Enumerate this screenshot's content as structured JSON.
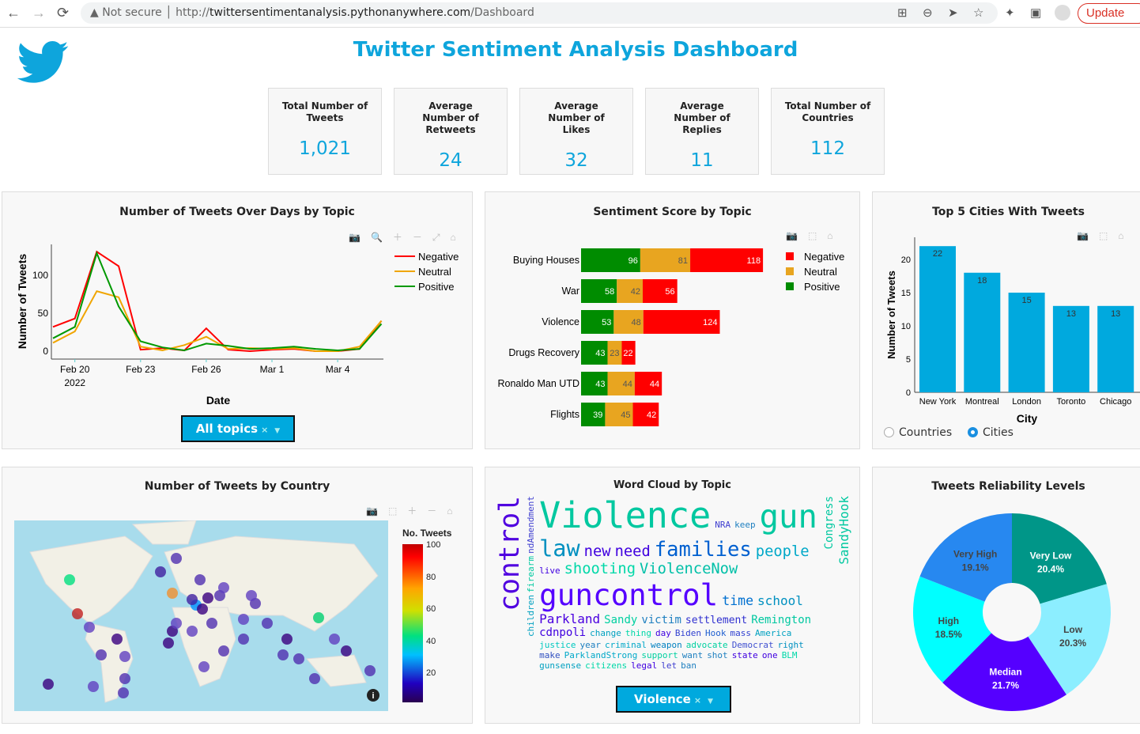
{
  "browser": {
    "back": "←",
    "forward": "→",
    "reload": "⟳",
    "warning": "Not secure",
    "url_host": "twittersentimentanalysis.pythonanywhere.com",
    "url_scheme": "http://",
    "url_path": "/Dashboard",
    "update": "Update"
  },
  "header": {
    "title": "Twitter Sentiment Analysis Dashboard",
    "logo": "twitter-bird-icon",
    "accent": "#0ea5dc"
  },
  "cards": [
    {
      "label": "Total Number of Tweets",
      "value": "1,021"
    },
    {
      "label": "Average Number of Retweets",
      "value": "24"
    },
    {
      "label": "Average Number of Likes",
      "value": "32"
    },
    {
      "label": "Average Number of Replies",
      "value": "11"
    },
    {
      "label": "Total Number of Countries",
      "value": "112"
    }
  ],
  "chart_data": [
    {
      "type": "line",
      "title": "Number of Tweets Over Days by Topic",
      "xlabel": "Date",
      "ylabel": "Number of Tweets",
      "x": [
        "2022-02-19",
        "2022-02-20",
        "2022-02-21",
        "2022-02-22",
        "2022-02-23",
        "2022-02-24",
        "2022-02-25",
        "2022-02-26",
        "2022-02-27",
        "2022-02-28",
        "2022-03-01",
        "2022-03-02",
        "2022-03-03",
        "2022-03-04",
        "2022-03-05",
        "2022-03-06"
      ],
      "xticks": [
        "Feb 20",
        "Feb 23",
        "Feb 26",
        "Mar 1",
        "Mar 4"
      ],
      "xtick_year": "2022",
      "yticks": [
        "0",
        "50",
        "100"
      ],
      "ylim": [
        0,
        140
      ],
      "legend": "top-right",
      "series": [
        {
          "name": "Negative",
          "color": "#ff0000",
          "values": [
            32,
            43,
            131,
            112,
            2,
            4,
            1,
            30,
            2,
            0,
            2,
            3,
            0,
            0,
            3,
            40
          ]
        },
        {
          "name": "Neutral",
          "color": "#f0a500",
          "values": [
            11,
            26,
            79,
            71,
            6,
            1,
            8,
            19,
            3,
            4,
            3,
            4,
            0,
            0,
            6,
            40
          ]
        },
        {
          "name": "Positive",
          "color": "#009900",
          "values": [
            17,
            32,
            129,
            59,
            13,
            5,
            1,
            10,
            7,
            3,
            4,
            6,
            3,
            1,
            3,
            36
          ]
        }
      ],
      "dropdown": "All topics"
    },
    {
      "type": "bar",
      "orientation": "horizontal",
      "stacked": true,
      "title": "Sentiment Score by Topic",
      "legend": "top-right",
      "categories": [
        "Buying Houses",
        "War",
        "Violence",
        "Drugs Recovery",
        "Ronaldo Man UTD",
        "Flights"
      ],
      "series": [
        {
          "name": "Positive",
          "color": "#008c00",
          "values": [
            96,
            58,
            53,
            43,
            43,
            39
          ]
        },
        {
          "name": "Neutral",
          "color": "#e8a520",
          "values": [
            81,
            42,
            48,
            23,
            44,
            45
          ]
        },
        {
          "name": "Negative",
          "color": "#ff0000",
          "values": [
            118,
            56,
            124,
            22,
            44,
            42
          ]
        }
      ],
      "legend_order": [
        "Negative",
        "Neutral",
        "Positive"
      ]
    },
    {
      "type": "bar",
      "title": "Top 5 Cities With Tweets",
      "xlabel": "City",
      "ylabel": "Number of Tweets",
      "categories": [
        "New York",
        "Montreal",
        "London",
        "Toronto",
        "Chicago"
      ],
      "values": [
        22,
        18,
        15,
        13,
        13
      ],
      "yticks": [
        "0",
        "5",
        "10",
        "15",
        "20"
      ],
      "ylim": [
        0,
        23
      ],
      "color": "#00a9de",
      "radio": {
        "options": [
          "Countries",
          "Cities"
        ],
        "selected": "Cities"
      }
    },
    {
      "type": "scatter",
      "subtype": "geo-map",
      "title": "Number of Tweets by Country",
      "colorbar_title": "No. Tweets",
      "colorbar_ticks": [
        "100",
        "80",
        "60",
        "40",
        "20"
      ],
      "colorscale": [
        "#ff0000",
        "#ffa500",
        "#c8e000",
        "#00e080",
        "#00c0ff",
        "#2000c0",
        "#2a0050"
      ]
    },
    {
      "type": "other",
      "subtype": "word-cloud",
      "title": "Word Cloud by Topic",
      "dropdown": "Violence",
      "words": [
        {
          "t": "Violence",
          "c": "#00c8a0"
        },
        {
          "t": "control",
          "c": "#5000e0"
        },
        {
          "t": "gun",
          "c": "#00c8a0"
        },
        {
          "t": "law",
          "c": "#0090c0"
        },
        {
          "t": "guncontrol",
          "c": "#5500ff"
        },
        {
          "t": "families",
          "c": "#0060d0"
        },
        {
          "t": "people",
          "c": "#00a8c8"
        },
        {
          "t": "need",
          "c": "#4000e0"
        },
        {
          "t": "Parkland",
          "c": "#4a00e0"
        },
        {
          "t": "shooting",
          "c": "#00d8a8"
        },
        {
          "t": "ViolenceNow",
          "c": "#00c0a8"
        },
        {
          "t": "new",
          "c": "#4000e0"
        },
        {
          "t": "time",
          "c": "#0070d0"
        },
        {
          "t": "school",
          "c": "#0090c0"
        },
        {
          "t": "settlement",
          "c": "#3030d0"
        },
        {
          "t": "NRA",
          "c": "#4040d0"
        },
        {
          "t": "thing",
          "c": "#00d8a8"
        },
        {
          "t": "change",
          "c": "#00a0c0"
        },
        {
          "t": "day",
          "c": "#4000e0"
        },
        {
          "t": "Biden",
          "c": "#3040d0"
        },
        {
          "t": "Hook",
          "c": "#2060d0"
        },
        {
          "t": "victim",
          "c": "#2080c0"
        },
        {
          "t": "Sandy",
          "c": "#00d0a0"
        },
        {
          "t": "mass",
          "c": "#3040d0"
        },
        {
          "t": "America",
          "c": "#00a0c0"
        },
        {
          "t": "justice",
          "c": "#00c8c0"
        },
        {
          "t": "year",
          "c": "#2080c0"
        },
        {
          "t": "Remington",
          "c": "#00c8a0"
        },
        {
          "t": "cdnpoli",
          "c": "#4000e0"
        },
        {
          "t": "criminal",
          "c": "#00a8c8"
        },
        {
          "t": "weapon",
          "c": "#0080c0"
        },
        {
          "t": "advocate",
          "c": "#00d0a0"
        },
        {
          "t": "Democrat",
          "c": "#4050d0"
        },
        {
          "t": "right",
          "c": "#0090c0"
        },
        {
          "t": "make",
          "c": "#3050c0"
        },
        {
          "t": "ParklandStrong",
          "c": "#00a8c8"
        },
        {
          "t": "support",
          "c": "#00d0a0"
        },
        {
          "t": "want",
          "c": "#2080c0"
        },
        {
          "t": "shot",
          "c": "#2080c0"
        },
        {
          "t": "state",
          "c": "#4000e0"
        },
        {
          "t": "one",
          "c": "#4000e0"
        },
        {
          "t": "BLM",
          "c": "#00d8a8"
        },
        {
          "t": "live",
          "c": "#4000e0"
        },
        {
          "t": "Congress",
          "c": "#00c8a0"
        },
        {
          "t": "SandyHook",
          "c": "#00c8a0"
        },
        {
          "t": "keep",
          "c": "#2080c0"
        },
        {
          "t": "gunsense",
          "c": "#00a0c0"
        },
        {
          "t": "citizens",
          "c": "#00d8a8"
        },
        {
          "t": "legal",
          "c": "#4000e0"
        },
        {
          "t": "let",
          "c": "#4040d0"
        },
        {
          "t": "ban",
          "c": "#2080c0"
        },
        {
          "t": "children",
          "c": "#00a0c0"
        },
        {
          "t": "firearm",
          "c": "#00c8a0"
        },
        {
          "t": "ndAmendment",
          "c": "#4040d0"
        }
      ]
    },
    {
      "type": "pie",
      "hole": true,
      "title": "Tweets Reliability Levels",
      "labels": [
        "Very Low",
        "Low",
        "Median",
        "High",
        "Very High"
      ],
      "values": [
        20.4,
        20.3,
        21.7,
        18.5,
        19.1
      ],
      "text": [
        "20.4%",
        "20.3%",
        "21.7%",
        "18.5%",
        "19.1%"
      ],
      "colors": [
        "#009688",
        "#8ceeff",
        "#5500ff",
        "#00ffff",
        "#2788f0"
      ],
      "text_colors": [
        "#ffffff",
        "#444444",
        "#ffffff",
        "#444444",
        "#444444"
      ]
    }
  ]
}
